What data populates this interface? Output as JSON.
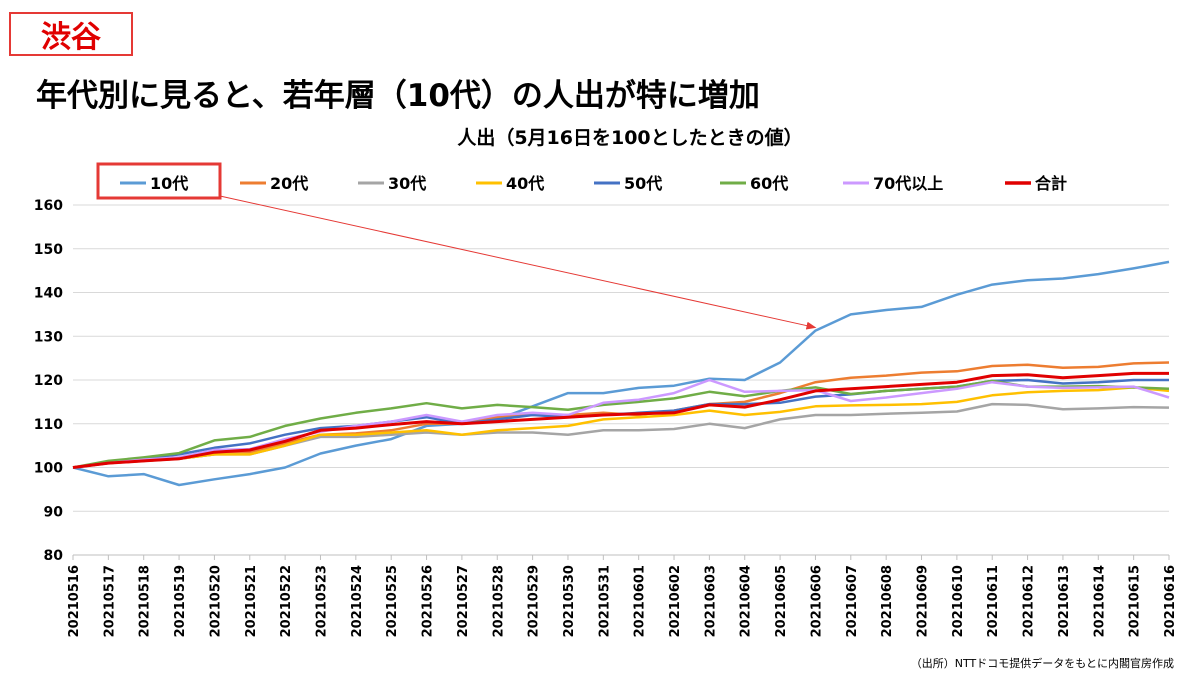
{
  "tag": "渋谷",
  "headline": "年代別に見ると、若年層（10代）の人出が特に増加",
  "source": "（出所）NTTドコモ提供データをもとに内閣官房作成",
  "chart_data": {
    "type": "line",
    "title": "人出（5月16日を100としたときの値）",
    "xlabel": "",
    "ylabel": "",
    "ylim": [
      80,
      160
    ],
    "yticks": [
      80,
      90,
      100,
      110,
      120,
      130,
      140,
      150,
      160
    ],
    "grid": true,
    "legend_position": "top",
    "highlighted_series": "10代",
    "categories": [
      "20210516",
      "20210517",
      "20210518",
      "20210519",
      "20210520",
      "20210521",
      "20210522",
      "20210523",
      "20210524",
      "20210525",
      "20210526",
      "20210527",
      "20210528",
      "20210529",
      "20210530",
      "20210531",
      "20210601",
      "20210602",
      "20210603",
      "20210604",
      "20210605",
      "20210606",
      "20210607",
      "20210608",
      "20210609",
      "20210610",
      "20210611",
      "20210612",
      "20210613",
      "20210614",
      "20210615",
      "20210616"
    ],
    "series": [
      {
        "name": "10代",
        "color": "#5b9bd5",
        "values": [
          100,
          98,
          98.5,
          96,
          97.3,
          98.5,
          100,
          103.2,
          105,
          106.5,
          109.5,
          110,
          111,
          114,
          117,
          117,
          118.2,
          118.7,
          120.3,
          120,
          124,
          131.3,
          135,
          136,
          136.7,
          139.5,
          141.8,
          142.8,
          143.2,
          144.2,
          145.5,
          147
        ]
      },
      {
        "name": "20代",
        "color": "#ed7d31",
        "values": [
          100,
          101,
          101.5,
          102,
          103,
          103.5,
          105.5,
          107.5,
          107.8,
          108.5,
          110,
          110,
          111.5,
          112,
          112,
          112.5,
          112,
          113,
          114.5,
          115,
          117,
          119.5,
          120.5,
          121,
          121.7,
          122,
          123.2,
          123.5,
          122.8,
          123,
          123.8,
          124
        ]
      },
      {
        "name": "30代",
        "color": "#a5a5a5",
        "values": [
          100,
          101,
          101.5,
          102,
          103,
          103,
          105,
          107,
          107,
          107.5,
          108,
          107.5,
          108,
          108,
          107.5,
          108.5,
          108.5,
          108.8,
          110,
          109,
          111,
          112,
          112,
          112.3,
          112.5,
          112.8,
          114.5,
          114.3,
          113.3,
          113.5,
          113.8,
          113.7
        ]
      },
      {
        "name": "40代",
        "color": "#ffc000",
        "values": [
          100,
          101,
          101.5,
          102,
          103,
          103,
          105,
          107.5,
          107.5,
          108,
          108.5,
          107.5,
          108.5,
          109,
          109.5,
          111,
          111.5,
          112,
          113,
          112,
          112.7,
          114,
          114.2,
          114.3,
          114.5,
          115,
          116.5,
          117.2,
          117.5,
          117.7,
          118.3,
          117.5
        ]
      },
      {
        "name": "50代",
        "color": "#4472c4",
        "values": [
          100,
          101,
          102,
          103,
          104.5,
          105.5,
          107.5,
          109,
          109.5,
          110.5,
          111.5,
          110,
          111,
          112,
          111.5,
          112,
          112.5,
          113,
          114.5,
          114.5,
          114.8,
          116.2,
          116.7,
          117.5,
          118,
          118.5,
          119.8,
          120,
          119.2,
          119.5,
          120,
          120
        ]
      },
      {
        "name": "60代",
        "color": "#70ad47",
        "values": [
          100,
          101.5,
          102.3,
          103.3,
          106.2,
          107,
          109.5,
          111.2,
          112.5,
          113.5,
          114.7,
          113.5,
          114.3,
          113.8,
          113.2,
          114.3,
          115,
          115.8,
          117.3,
          116.3,
          117.5,
          118.3,
          116.8,
          117.5,
          118,
          118.5,
          119.8,
          118.5,
          118.5,
          118.6,
          118.3,
          118
        ]
      },
      {
        "name": "70代以上",
        "color": "#cc99ff",
        "values": [
          100,
          101,
          101.8,
          102.3,
          104,
          104.2,
          106.5,
          108.2,
          109.5,
          110.5,
          112,
          110.5,
          112,
          112.5,
          112,
          114.8,
          115.5,
          117,
          120,
          117.3,
          117.5,
          117.7,
          115.2,
          116,
          117,
          118,
          119.5,
          118.5,
          118.2,
          118.3,
          118.5,
          116
        ]
      },
      {
        "name": "合計",
        "color": "#e00000",
        "values": [
          100,
          101,
          101.5,
          102,
          103.5,
          104,
          106,
          108.5,
          109,
          109.8,
          110.5,
          110,
          110.5,
          111,
          111.5,
          112,
          112.3,
          112.5,
          114.3,
          113.8,
          115.5,
          117.5,
          118,
          118.5,
          119,
          119.5,
          121,
          121.2,
          120.5,
          121,
          121.5,
          121.5
        ]
      }
    ]
  }
}
